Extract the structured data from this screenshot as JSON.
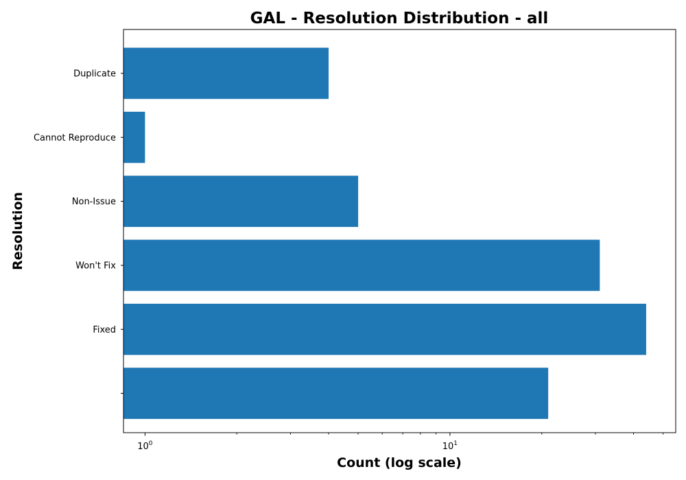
{
  "chart_data": {
    "type": "bar",
    "orientation": "horizontal",
    "title": "GAL - Resolution Distribution - all",
    "xlabel": "Count (log scale)",
    "ylabel": "Resolution",
    "x_scale": "log",
    "xlim": [
      0.85,
      55
    ],
    "categories": [
      "Duplicate",
      "Cannot Reproduce",
      "Non-Issue",
      "Won't Fix",
      "Fixed",
      ""
    ],
    "values": [
      4,
      1,
      5,
      31,
      44,
      21
    ],
    "bar_color": "#1f77b4",
    "x_major_ticks": [
      {
        "value": 1,
        "base": "10",
        "exp": "0"
      },
      {
        "value": 10,
        "base": "10",
        "exp": "1"
      }
    ],
    "x_minor_ticks": [
      2,
      3,
      4,
      5,
      6,
      7,
      8,
      9,
      20,
      30,
      40,
      50
    ],
    "grid": false,
    "legend": false
  }
}
